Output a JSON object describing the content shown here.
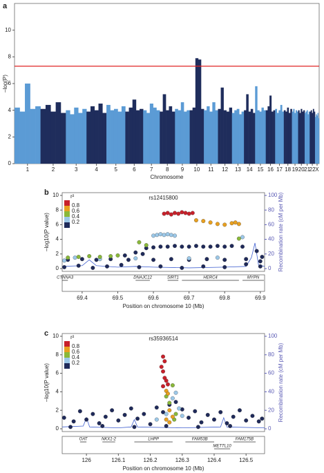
{
  "chart_data": [
    {
      "type": "manhattan",
      "panel_label": "a",
      "ylabel": "–log(P)",
      "xlabel": "Chromosome",
      "categories": [
        "1",
        "2",
        "3",
        "4",
        "5",
        "6",
        "7",
        "8",
        "9",
        "10",
        "11",
        "12",
        "13",
        "14",
        "15",
        "16",
        "17",
        "18",
        "19",
        "20",
        "21",
        "22",
        "X"
      ],
      "sizes": [
        249,
        243,
        198,
        191,
        181,
        171,
        159,
        146,
        141,
        136,
        135,
        134,
        115,
        107,
        102,
        90,
        83,
        78,
        59,
        63,
        48,
        51,
        40
      ],
      "peaks": [
        [
          4.2,
          3.9,
          6.0,
          4.1,
          4.3
        ],
        [
          4.1,
          4.4,
          3.9,
          4.6,
          3.8
        ],
        [
          4.0,
          3.7,
          4.2,
          3.8,
          4.1
        ],
        [
          3.9,
          4.3,
          4.0,
          4.5,
          3.8
        ],
        [
          4.4,
          4.0,
          4.1,
          3.9,
          4.3
        ],
        [
          3.9,
          4.2,
          4.8,
          4.0,
          4.1
        ],
        [
          4.0,
          3.8,
          4.5,
          4.2,
          4.0
        ],
        [
          3.9,
          5.2,
          4.0,
          4.3,
          3.9
        ],
        [
          4.1,
          4.0,
          4.6,
          3.9,
          4.0
        ],
        [
          4.0,
          4.2,
          7.9,
          7.8,
          4.1
        ],
        [
          4.0,
          4.3,
          3.9,
          4.6,
          4.0
        ],
        [
          4.1,
          5.7,
          4.0,
          3.9,
          4.2
        ],
        [
          3.8,
          4.0,
          4.1,
          3.7,
          3.9
        ],
        [
          4.0,
          5.2,
          3.9,
          4.1,
          3.8
        ],
        [
          5.8,
          4.0,
          3.9,
          4.2,
          4.0
        ],
        [
          4.0,
          4.3,
          5.1,
          3.9,
          4.0
        ],
        [
          4.1,
          3.8,
          4.0,
          4.4,
          3.9
        ],
        [
          4.0,
          3.9,
          4.2,
          3.8,
          4.1
        ],
        [
          3.9,
          4.1,
          3.8,
          4.0,
          3.9
        ],
        [
          4.0,
          3.8,
          4.1,
          3.9,
          4.0
        ],
        [
          3.8,
          3.9,
          4.0,
          3.7,
          3.9
        ],
        [
          3.9,
          4.0,
          3.8,
          4.1,
          3.9
        ],
        [
          3.5,
          3.7,
          3.6,
          3.8,
          3.4
        ]
      ],
      "colors": [
        "#5b9bd5",
        "#1f2d5c"
      ],
      "threshold": 7.3,
      "threshold_color": "#e02020",
      "ylim": [
        0,
        12
      ],
      "yticks": [
        0,
        2,
        4,
        6,
        8,
        10
      ]
    },
    {
      "type": "regional",
      "panel_label": "b",
      "title": "rs12415800",
      "legend_title": "r²",
      "xlabel": "Position on chromosome 10 (Mb)",
      "ylabel": "–log10(P value)",
      "y2label": "Recombination rate (cM per Mb)",
      "xlim": [
        69.344,
        69.912
      ],
      "xticks": [
        69.4,
        69.5,
        69.6,
        69.7,
        69.8,
        69.9
      ],
      "ylim": [
        0,
        10
      ],
      "yticks": [
        0,
        2,
        4,
        6,
        8,
        10
      ],
      "y2lim": [
        0,
        100
      ],
      "y2ticks": [
        0,
        20,
        40,
        60,
        80,
        100
      ],
      "series": [
        {
          "name": "0.8",
          "color": "#c8202a",
          "x": [
            69.63,
            69.64,
            69.65,
            69.66,
            69.67,
            69.68,
            69.69,
            69.7,
            69.71
          ],
          "values": [
            7.5,
            7.6,
            7.4,
            7.6,
            7.5,
            7.7,
            7.6,
            7.5,
            7.6
          ]
        },
        {
          "name": "0.6",
          "color": "#e8a020",
          "x": [
            69.72,
            69.74,
            69.76,
            69.78,
            69.8,
            69.82,
            69.83,
            69.84
          ],
          "values": [
            6.6,
            6.5,
            6.3,
            6.1,
            6.0,
            6.2,
            6.3,
            6.1
          ]
        },
        {
          "name": "0.4",
          "color": "#8ab83a",
          "x": [
            69.36,
            69.39,
            69.42,
            69.45,
            69.48,
            69.5,
            69.56,
            69.58,
            69.84
          ],
          "values": [
            1.5,
            1.6,
            1.7,
            1.6,
            1.7,
            1.8,
            3.6,
            3.2,
            4.1
          ]
        },
        {
          "name": "0.2",
          "color": "#9cc8e8",
          "x": [
            69.6,
            69.61,
            69.62,
            69.63,
            69.64,
            69.65,
            69.66,
            69.85,
            69.38,
            69.45,
            69.55,
            69.7,
            69.78,
            69.35
          ],
          "values": [
            4.5,
            4.6,
            4.7,
            4.6,
            4.7,
            4.6,
            4.5,
            4.3,
            1.5,
            1.3,
            1.4,
            1.4,
            1.5,
            1.1
          ]
        },
        {
          "color": "#1f2a5a",
          "x": [
            69.58,
            69.6,
            69.62,
            69.64,
            69.66,
            69.68,
            69.7,
            69.72,
            69.74,
            69.76,
            69.78,
            69.8,
            69.82,
            69.85,
            69.52,
            69.55,
            69.57,
            69.36,
            69.4,
            69.44,
            69.48,
            69.53,
            69.6,
            69.65,
            69.7,
            69.75,
            69.8,
            69.86,
            69.9,
            69.35,
            69.39,
            69.43,
            69.47,
            69.51,
            69.56,
            69.62,
            69.68,
            69.74,
            69.8,
            69.86,
            69.9,
            69.89,
            69.905
          ],
          "values": [
            2.8,
            2.9,
            3.0,
            3.0,
            3.1,
            3.0,
            3.0,
            3.1,
            3.0,
            3.0,
            3.1,
            3.0,
            3.1,
            3.0,
            1.8,
            2.2,
            2.0,
            1.2,
            1.3,
            1.2,
            1.3,
            1.2,
            1.2,
            1.3,
            1.2,
            1.3,
            1.2,
            1.3,
            1.0,
            0.2,
            0.4,
            0.1,
            0.3,
            0.5,
            0.2,
            0.3,
            0.1,
            0.3,
            0.2,
            0.6,
            0.3,
            2.4,
            1.6
          ]
        }
      ],
      "recombination": {
        "color": "#4060d0",
        "axis": "y2",
        "x": [
          69.344,
          69.4,
          69.42,
          69.44,
          69.5,
          69.55,
          69.6,
          69.7,
          69.8,
          69.86,
          69.875,
          69.885,
          69.895,
          69.912
        ],
        "values": [
          3,
          4,
          12,
          4,
          2,
          3,
          2,
          1,
          2,
          3,
          15,
          35,
          5,
          3
        ]
      },
      "genes": [
        {
          "label": "CTNNA3",
          "start": 69.344,
          "end": 69.36
        },
        {
          "label": "DNAJC12",
          "start": 69.55,
          "end": 69.59
        },
        {
          "label": "SIRT1",
          "start": 69.64,
          "end": 69.67
        },
        {
          "label": "HERC4",
          "start": 69.68,
          "end": 69.84
        },
        {
          "label": "MYPN",
          "start": 69.85,
          "end": 69.91
        }
      ]
    },
    {
      "type": "regional",
      "panel_label": "c",
      "title": "rs35936514",
      "legend_title": "r²",
      "xlabel": "Position on chromosome 10 (Mb)",
      "ylabel": "–log10(P value)",
      "y2label": "Recombination rate (cM per Mb)",
      "xlim": [
        125.924,
        126.558
      ],
      "xticks": [
        126,
        126.1,
        126.2,
        126.3,
        126.4,
        126.5
      ],
      "ylim": [
        0,
        10
      ],
      "yticks": [
        0,
        2,
        4,
        6,
        8,
        10
      ],
      "y2lim": [
        0,
        100
      ],
      "y2ticks": [
        0,
        20,
        40,
        60,
        80,
        100
      ],
      "series": [
        {
          "name": "0.8",
          "color": "#c8202a",
          "x": [
            126.24,
            126.245,
            126.235,
            126.24,
            126.245,
            126.25,
            126.24,
            126.255
          ],
          "values": [
            7.8,
            7.3,
            6.7,
            6.2,
            5.5,
            5.2,
            4.6,
            4.8
          ]
        },
        {
          "name": "0.6",
          "color": "#e8a020",
          "x": [
            126.25,
            126.255,
            126.26,
            126.27,
            126.25,
            126.26
          ],
          "values": [
            4.1,
            3.8,
            2.0,
            1.3,
            1.0,
            0.7
          ]
        },
        {
          "name": "0.4",
          "color": "#8ab83a",
          "x": [
            126.25,
            126.27,
            126.26,
            126.275,
            126.28
          ],
          "values": [
            3.5,
            4.7,
            2.8,
            1.0,
            1.6
          ]
        },
        {
          "name": "0.2",
          "color": "#9cc8e8",
          "x": [
            126.28,
            126.27,
            126.29,
            126.25,
            126.3,
            126.22
          ],
          "values": [
            3.9,
            3.3,
            2.2,
            1.6,
            1.4,
            1.0
          ]
        },
        {
          "color": "#1f2a5a",
          "x": [
            125.93,
            125.96,
            125.98,
            126.0,
            126.02,
            126.04,
            126.06,
            126.08,
            126.1,
            126.12,
            126.14,
            126.16,
            126.18,
            126.2,
            126.22,
            126.24,
            126.26,
            126.28,
            126.3,
            126.32,
            126.34,
            126.36,
            126.38,
            126.4,
            126.42,
            126.44,
            126.46,
            126.48,
            126.5,
            126.52,
            126.54,
            126.55,
            125.95,
            126.05,
            126.15,
            126.25,
            126.35,
            126.45
          ],
          "values": [
            1.2,
            0.8,
            1.9,
            1.0,
            1.6,
            0.6,
            1.3,
            2.0,
            0.9,
            1.5,
            2.2,
            1.1,
            1.6,
            0.5,
            2.3,
            1.8,
            2.6,
            2.9,
            2.1,
            1.2,
            1.9,
            0.7,
            1.5,
            1.0,
            1.8,
            0.6,
            1.3,
            2.0,
            0.9,
            1.4,
            0.8,
            1.1,
            0.2,
            0.3,
            0.2,
            0.3,
            0.2,
            0.3
          ]
        }
      ],
      "recombination": {
        "color": "#4060d0",
        "axis": "y2",
        "x": [
          125.924,
          125.99,
          126.0,
          126.01,
          126.1,
          126.14,
          126.15,
          126.16,
          126.3,
          126.42,
          126.43,
          126.44,
          126.558
        ],
        "values": [
          2,
          3,
          12,
          2,
          1,
          2,
          10,
          2,
          1,
          2,
          12,
          2,
          1
        ]
      },
      "genes": [
        {
          "label": "OAT",
          "start": 125.98,
          "end": 126.0
        },
        {
          "label": "NKX1-2",
          "start": 126.05,
          "end": 126.09
        },
        {
          "label": "LHPP",
          "start": 126.15,
          "end": 126.27
        },
        {
          "label": "FAM53B",
          "start": 126.31,
          "end": 126.4
        },
        {
          "label": "METTL10",
          "start": 126.4,
          "end": 126.45
        },
        {
          "label": "FAM175B",
          "start": 126.46,
          "end": 126.53
        }
      ]
    }
  ]
}
